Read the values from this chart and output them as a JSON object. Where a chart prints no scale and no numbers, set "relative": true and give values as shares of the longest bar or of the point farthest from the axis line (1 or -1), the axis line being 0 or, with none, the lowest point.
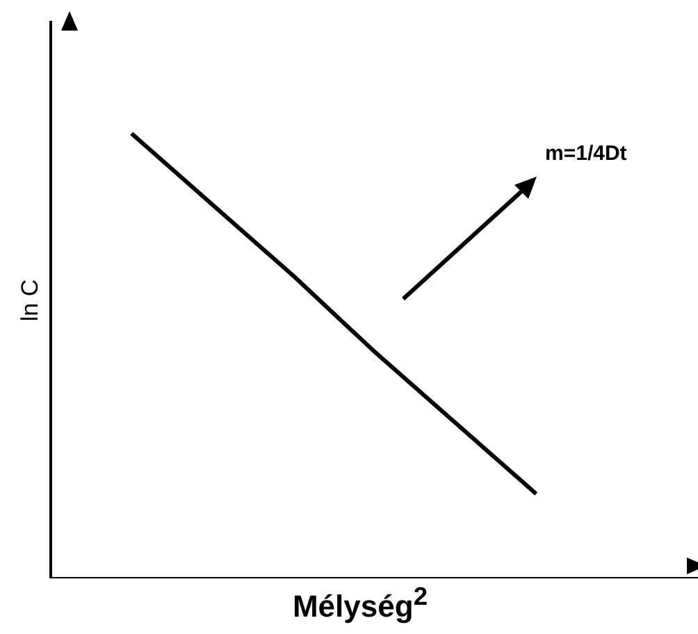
{
  "chart_data": {
    "type": "line",
    "relative": true,
    "xlabel": "Mélység$^{2}$",
    "ylabel": "ln C",
    "annotations": [
      "m=1/4Dt"
    ],
    "categories": [
      null,
      null,
      null,
      null,
      null,
      null,
      null,
      null,
      null
    ],
    "series": [
      {
        "color": "#000000",
        "values": [
          null,
          1,
          0.84,
          0.68,
          0.51,
          0.35,
          0.19,
          null,
          null
        ]
      }
    ],
    "grid": false,
    "legend": false,
    "marker": "none",
    "line_style": "solid"
  }
}
